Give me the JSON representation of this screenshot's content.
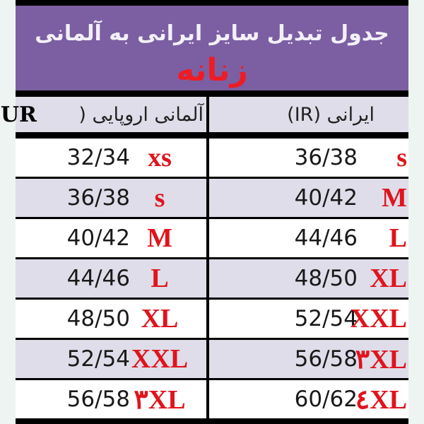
{
  "title": "جدول تبدیل سایز ایرانی به آلمانی",
  "subtitle": "زنانه",
  "headers": {
    "left": "آلمانی اروپایی (EUR)",
    "left_visible": "آلمانی اروپایی (",
    "left_overflow": "EUR",
    "right": "ایرانی (IR)"
  },
  "rows": [
    {
      "eur_num": "32/34",
      "eur_size": "xs",
      "ir_num": "36/38",
      "ir_size": "s"
    },
    {
      "eur_num": "36/38",
      "eur_size": "s",
      "ir_num": "40/42",
      "ir_size": "M"
    },
    {
      "eur_num": "40/42",
      "eur_size": "M",
      "ir_num": "44/46",
      "ir_size": "L"
    },
    {
      "eur_num": "44/46",
      "eur_size": "L",
      "ir_num": "48/50",
      "ir_size": "XL"
    },
    {
      "eur_num": "48/50",
      "eur_size": "XL",
      "ir_num": "52/54",
      "ir_size": "XXL"
    },
    {
      "eur_num": "52/54",
      "eur_size": "XXL",
      "ir_num": "56/58",
      "ir_size": "۳XL"
    },
    {
      "eur_num": "56/58",
      "eur_size": "۳XL",
      "ir_num": "60/62",
      "ir_size": "٤XL"
    }
  ],
  "colors": {
    "header_band": "#7b5fa2",
    "accent_red": "#e0141c",
    "row_alt": "#dedde9"
  }
}
